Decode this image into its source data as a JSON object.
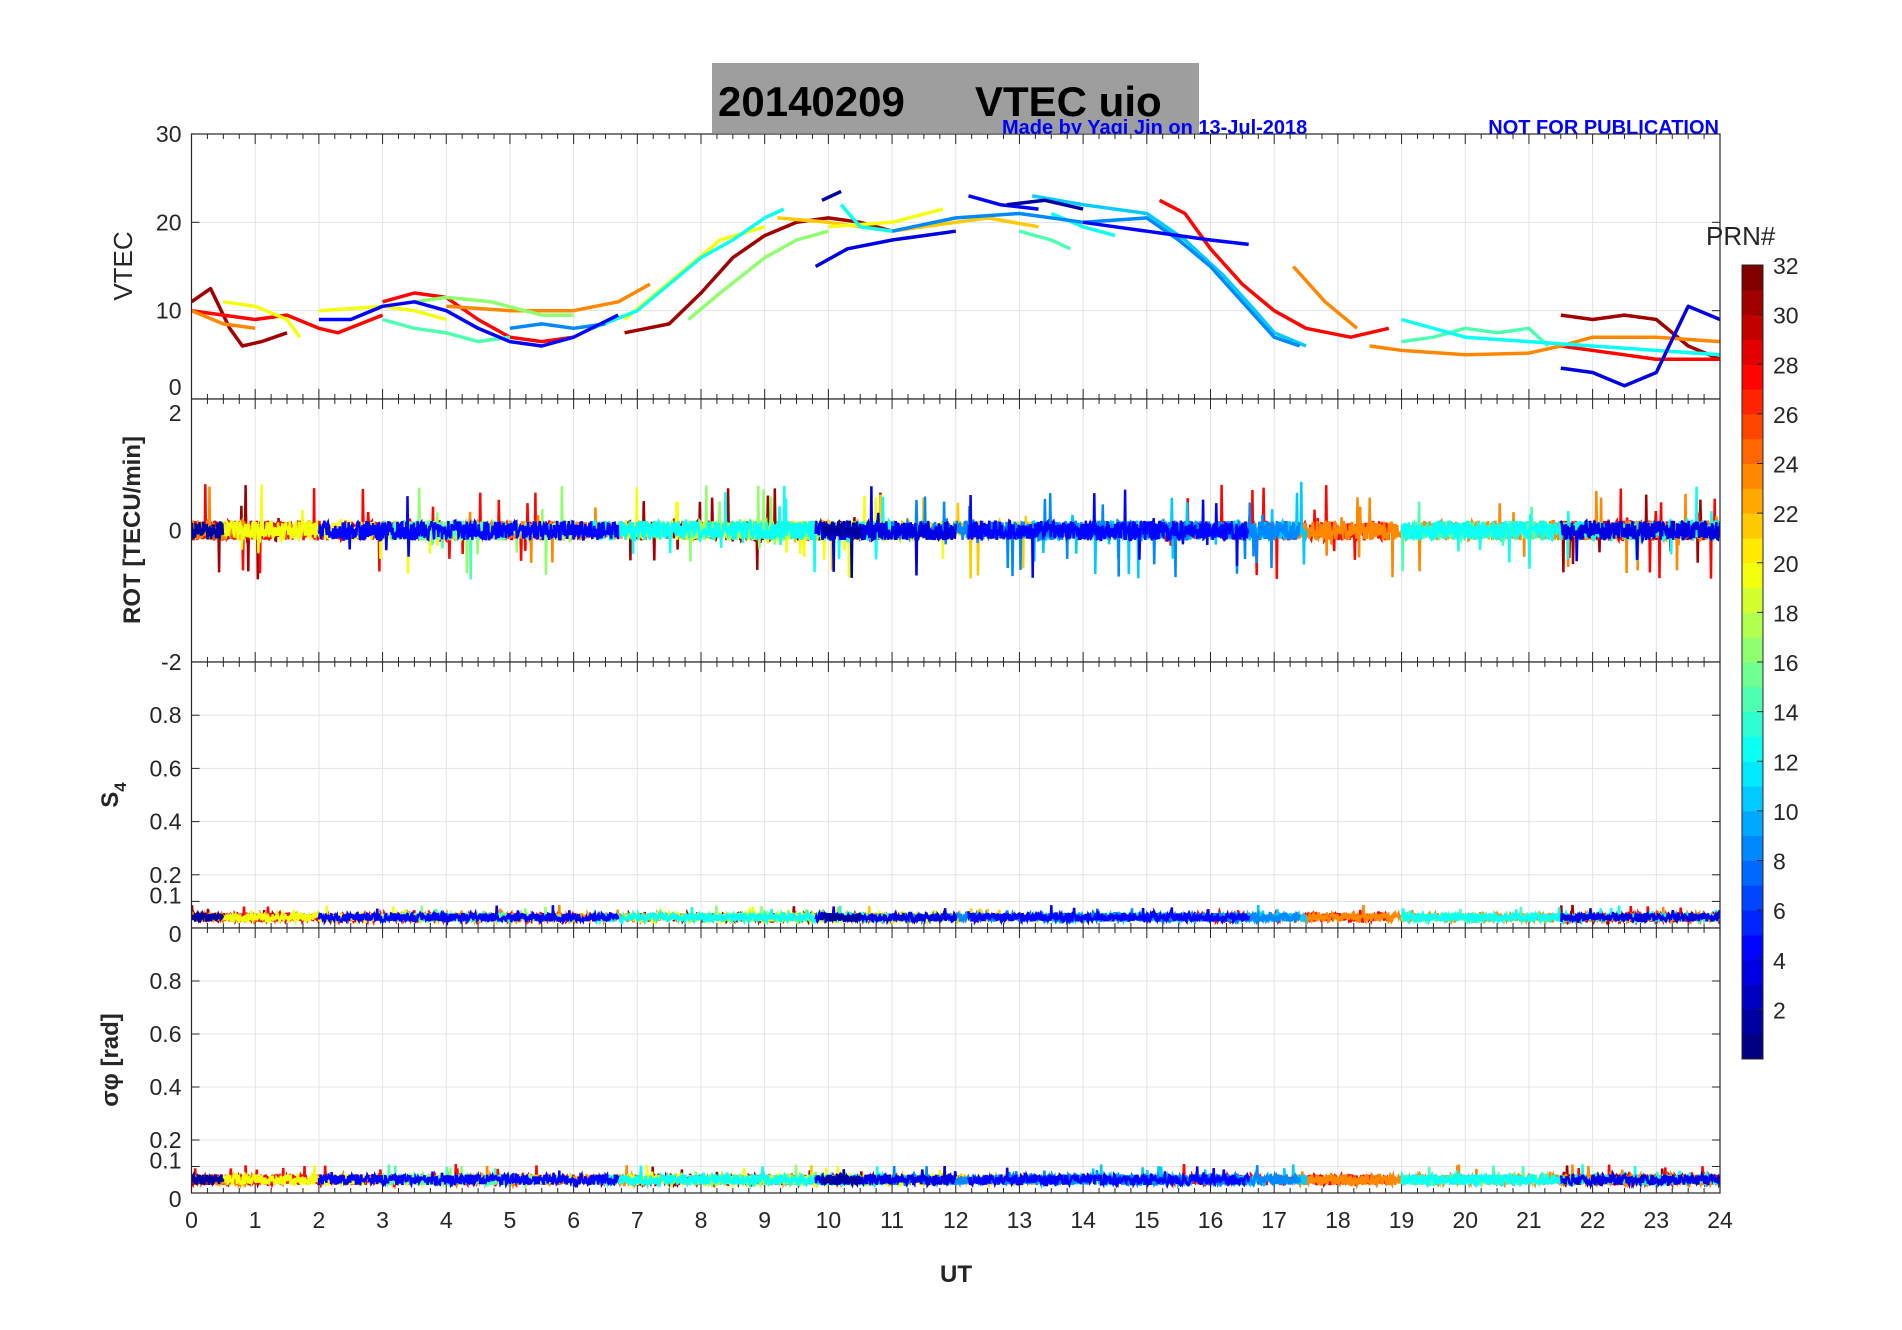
{
  "title": {
    "date": "20140209",
    "name": "VTEC  uio",
    "credit": "Made by Yaqi Jin on 13-Jul-2018",
    "notice": "NOT FOR PUBLICATION"
  },
  "colorbar": {
    "label": "PRN#",
    "ticks": [
      "2",
      "4",
      "6",
      "8",
      "10",
      "12",
      "14",
      "16",
      "18",
      "20",
      "22",
      "24",
      "26",
      "28",
      "30",
      "32"
    ],
    "range": [
      1,
      32
    ],
    "colormap": "jet"
  },
  "chart_data": [
    {
      "type": "line",
      "panel": "vtec",
      "ylabel": "VTEC",
      "ylim": [
        0,
        30
      ],
      "yticks": [
        "0",
        "10",
        "20",
        "30"
      ],
      "series": [
        {
          "prn": 31,
          "points": [
            [
              0,
              11
            ],
            [
              0.3,
              12.5
            ],
            [
              0.6,
              8
            ],
            [
              0.8,
              6
            ],
            [
              1.1,
              6.5
            ],
            [
              1.5,
              7.5
            ]
          ]
        },
        {
          "prn": 31,
          "points": [
            [
              6.8,
              7.5
            ],
            [
              7.5,
              8.5
            ],
            [
              8,
              12
            ],
            [
              8.5,
              16
            ],
            [
              9,
              18.5
            ],
            [
              9.5,
              20
            ],
            [
              10,
              20.5
            ],
            [
              10.5,
              20
            ],
            [
              11,
              19
            ]
          ]
        },
        {
          "prn": 31,
          "points": [
            [
              21.5,
              9.5
            ],
            [
              22,
              9
            ],
            [
              22.5,
              9.5
            ],
            [
              23,
              9
            ],
            [
              23.5,
              6
            ],
            [
              24,
              4.5
            ]
          ]
        },
        {
          "prn": 28,
          "points": [
            [
              0,
              10
            ],
            [
              0.5,
              9.5
            ],
            [
              1,
              9
            ],
            [
              1.5,
              9.5
            ],
            [
              2,
              8
            ],
            [
              2.3,
              7.5
            ],
            [
              3,
              9.5
            ]
          ]
        },
        {
          "prn": 28,
          "points": [
            [
              3,
              11
            ],
            [
              3.5,
              12
            ],
            [
              4,
              11.5
            ],
            [
              4.5,
              9
            ],
            [
              5,
              7
            ],
            [
              5.5,
              6.5
            ],
            [
              6,
              7
            ]
          ]
        },
        {
          "prn": 28,
          "points": [
            [
              15.2,
              22.5
            ],
            [
              15.6,
              21
            ],
            [
              16,
              17
            ],
            [
              16.5,
              13
            ],
            [
              17,
              10
            ],
            [
              17.5,
              8
            ],
            [
              18.2,
              7
            ],
            [
              18.8,
              8
            ]
          ]
        },
        {
          "prn": 28,
          "points": [
            [
              21.5,
              6
            ],
            [
              22.5,
              5
            ],
            [
              23,
              4.5
            ],
            [
              24,
              4.5
            ]
          ]
        },
        {
          "prn": 24,
          "points": [
            [
              0,
              10
            ],
            [
              0.5,
              8.5
            ],
            [
              1,
              8
            ]
          ]
        },
        {
          "prn": 24,
          "points": [
            [
              4,
              10.5
            ],
            [
              5,
              10
            ],
            [
              6,
              10
            ],
            [
              6.7,
              11
            ],
            [
              7.2,
              13
            ]
          ]
        },
        {
          "prn": 24,
          "points": [
            [
              17.3,
              15
            ],
            [
              17.8,
              11
            ],
            [
              18.3,
              8
            ]
          ]
        },
        {
          "prn": 24,
          "points": [
            [
              18.5,
              6
            ],
            [
              19,
              5.5
            ],
            [
              20,
              5
            ],
            [
              21,
              5.2
            ],
            [
              21.5,
              6
            ],
            [
              22,
              7
            ],
            [
              23,
              7
            ],
            [
              24,
              6.5
            ]
          ]
        },
        {
          "prn": 22,
          "points": [
            [
              9.2,
              20.5
            ],
            [
              10,
              20
            ],
            [
              11,
              19
            ],
            [
              12,
              20
            ],
            [
              12.5,
              20.5
            ],
            [
              13.3,
              19.5
            ]
          ]
        },
        {
          "prn": 20,
          "points": [
            [
              0.5,
              11
            ],
            [
              1,
              10.5
            ],
            [
              1.5,
              9
            ],
            [
              1.7,
              7
            ]
          ]
        },
        {
          "prn": 20,
          "points": [
            [
              2,
              10
            ],
            [
              3,
              10.5
            ],
            [
              3.5,
              10
            ],
            [
              4,
              9
            ]
          ]
        },
        {
          "prn": 20,
          "points": [
            [
              6.8,
              9
            ],
            [
              7.3,
              12
            ],
            [
              7.8,
              15
            ],
            [
              8.3,
              18
            ],
            [
              9,
              19.5
            ]
          ]
        },
        {
          "prn": 20,
          "points": [
            [
              10,
              19.5
            ],
            [
              11,
              20
            ],
            [
              11.8,
              21.5
            ]
          ]
        },
        {
          "prn": 17,
          "points": [
            [
              3.5,
              11
            ],
            [
              4,
              11.5
            ],
            [
              4.7,
              11
            ],
            [
              5.5,
              9.5
            ],
            [
              6,
              9.5
            ]
          ]
        },
        {
          "prn": 17,
          "points": [
            [
              7.8,
              9
            ],
            [
              8.3,
              12
            ],
            [
              9,
              16
            ],
            [
              9.5,
              18
            ],
            [
              10,
              19
            ]
          ]
        },
        {
          "prn": 15,
          "points": [
            [
              3,
              9
            ],
            [
              3.5,
              8
            ],
            [
              4,
              7.5
            ],
            [
              4.5,
              6.5
            ],
            [
              5,
              7
            ]
          ]
        },
        {
          "prn": 15,
          "points": [
            [
              13,
              19
            ],
            [
              13.5,
              18
            ],
            [
              13.8,
              17
            ]
          ]
        },
        {
          "prn": 15,
          "points": [
            [
              19,
              6.5
            ],
            [
              19.5,
              7
            ],
            [
              20,
              8
            ],
            [
              20.5,
              7.5
            ],
            [
              21,
              8
            ],
            [
              21.3,
              6
            ]
          ]
        },
        {
          "prn": 13,
          "points": [
            [
              6.3,
              8
            ],
            [
              7,
              10
            ],
            [
              7.5,
              13
            ],
            [
              8,
              16
            ],
            [
              8.5,
              18
            ],
            [
              9,
              20.5
            ],
            [
              9.3,
              21.5
            ]
          ]
        },
        {
          "prn": 13,
          "points": [
            [
              10.2,
              22
            ],
            [
              10.5,
              19.5
            ],
            [
              11,
              19
            ]
          ]
        },
        {
          "prn": 13,
          "points": [
            [
              13.5,
              21
            ],
            [
              14,
              19.5
            ],
            [
              14.5,
              18.5
            ]
          ]
        },
        {
          "prn": 13,
          "points": [
            [
              19,
              9
            ],
            [
              19.5,
              8
            ],
            [
              20,
              7
            ],
            [
              21,
              6.5
            ],
            [
              22,
              6
            ],
            [
              23,
              5.5
            ],
            [
              24,
              5
            ]
          ]
        },
        {
          "prn": 11,
          "points": [
            [
              13.2,
              23
            ],
            [
              14,
              22
            ],
            [
              15,
              21
            ],
            [
              15.6,
              18
            ],
            [
              16.2,
              14
            ],
            [
              16.7,
              10
            ],
            [
              17,
              7.5
            ],
            [
              17.5,
              6
            ]
          ]
        },
        {
          "prn": 9,
          "points": [
            [
              11,
              19
            ],
            [
              12,
              20.5
            ],
            [
              13,
              21
            ],
            [
              14,
              20
            ],
            [
              15,
              20.5
            ],
            [
              15.5,
              18
            ],
            [
              16,
              15
            ],
            [
              16.5,
              11
            ],
            [
              17,
              7
            ],
            [
              17.4,
              6
            ]
          ]
        },
        {
          "prn": 9,
          "points": [
            [
              5,
              8
            ],
            [
              5.5,
              8.5
            ],
            [
              6,
              8
            ],
            [
              6.5,
              8.5
            ]
          ]
        },
        {
          "prn": 5,
          "points": [
            [
              2,
              9
            ],
            [
              2.5,
              9
            ],
            [
              3,
              10.5
            ],
            [
              3.5,
              11
            ],
            [
              4,
              10
            ],
            [
              4.5,
              8
            ],
            [
              5,
              6.5
            ],
            [
              5.5,
              6
            ],
            [
              6,
              7
            ],
            [
              6.7,
              9.5
            ]
          ]
        },
        {
          "prn": 5,
          "points": [
            [
              14,
              20
            ],
            [
              14.5,
              19.5
            ],
            [
              15,
              19
            ],
            [
              15.5,
              18.5
            ],
            [
              16,
              18
            ],
            [
              16.6,
              17.5
            ]
          ]
        },
        {
          "prn": 5,
          "points": [
            [
              12.2,
              23
            ],
            [
              12.7,
              22
            ],
            [
              13.3,
              21.5
            ]
          ]
        },
        {
          "prn": 4,
          "points": [
            [
              9.8,
              15
            ],
            [
              10.3,
              17
            ],
            [
              11,
              18
            ],
            [
              11.5,
              18.5
            ],
            [
              12,
              19
            ]
          ]
        },
        {
          "prn": 4,
          "points": [
            [
              21.5,
              3.5
            ],
            [
              22,
              3
            ],
            [
              22.5,
              1.5
            ],
            [
              23,
              3
            ],
            [
              23.5,
              10.5
            ],
            [
              24,
              9
            ]
          ]
        },
        {
          "prn": 2,
          "points": [
            [
              9.9,
              22.5
            ],
            [
              10.2,
              23.5
            ]
          ]
        },
        {
          "prn": 2,
          "points": [
            [
              12.8,
              22
            ],
            [
              13.4,
              22.5
            ],
            [
              14,
              21.5
            ]
          ]
        }
      ]
    },
    {
      "type": "line",
      "panel": "rot",
      "ylabel": "ROT [TECU/min]",
      "ylim": [
        -2,
        2
      ],
      "yticks": [
        "-2",
        "0",
        "2"
      ],
      "typical_abs_value": 0.15,
      "max_abs_value": 1.3
    },
    {
      "type": "line",
      "panel": "s4",
      "ylabel": "S4",
      "ylim": [
        0,
        1
      ],
      "yticks": [
        "0",
        "0.1",
        "0.2",
        "0.4",
        "0.6",
        "0.8"
      ],
      "typical_value": 0.04,
      "max_value": 0.1
    },
    {
      "type": "line",
      "panel": "sigma_phi",
      "ylabel": "σφ [rad]",
      "ylim": [
        0,
        1
      ],
      "yticks": [
        "0",
        "0.1",
        "0.2",
        "0.4",
        "0.6",
        "0.8"
      ],
      "typical_value": 0.05,
      "max_value": 0.12
    }
  ],
  "xaxis": {
    "label": "UT",
    "xlim": [
      0,
      24
    ],
    "ticks": [
      "0",
      "1",
      "2",
      "3",
      "4",
      "5",
      "6",
      "7",
      "8",
      "9",
      "10",
      "11",
      "12",
      "13",
      "14",
      "15",
      "16",
      "17",
      "18",
      "19",
      "20",
      "21",
      "22",
      "23",
      "24"
    ]
  },
  "arcs": [
    {
      "prn": 31,
      "start": 0,
      "end": 1.5
    },
    {
      "prn": 31,
      "start": 6.8,
      "end": 11
    },
    {
      "prn": 31,
      "start": 21.5,
      "end": 24
    },
    {
      "prn": 28,
      "start": 0,
      "end": 6
    },
    {
      "prn": 28,
      "start": 15.2,
      "end": 18.8
    },
    {
      "prn": 28,
      "start": 21.5,
      "end": 24
    },
    {
      "prn": 24,
      "start": 0,
      "end": 1
    },
    {
      "prn": 24,
      "start": 4,
      "end": 7.2
    },
    {
      "prn": 24,
      "start": 17.3,
      "end": 24
    },
    {
      "prn": 22,
      "start": 9.2,
      "end": 13.3
    },
    {
      "prn": 20,
      "start": 0.5,
      "end": 4
    },
    {
      "prn": 20,
      "start": 6.8,
      "end": 11.8
    },
    {
      "prn": 17,
      "start": 3.5,
      "end": 6
    },
    {
      "prn": 17,
      "start": 7.8,
      "end": 10
    },
    {
      "prn": 15,
      "start": 3,
      "end": 5
    },
    {
      "prn": 15,
      "start": 19,
      "end": 21.3
    },
    {
      "prn": 13,
      "start": 6.3,
      "end": 11
    },
    {
      "prn": 13,
      "start": 19,
      "end": 24
    },
    {
      "prn": 11,
      "start": 13.2,
      "end": 17.5
    },
    {
      "prn": 9,
      "start": 11,
      "end": 17.4
    },
    {
      "prn": 5,
      "start": 2,
      "end": 6.7
    },
    {
      "prn": 5,
      "start": 12.2,
      "end": 16.6
    },
    {
      "prn": 4,
      "start": 9.8,
      "end": 12
    },
    {
      "prn": 4,
      "start": 21.5,
      "end": 24
    },
    {
      "prn": 2,
      "start": 0,
      "end": 0.5
    },
    {
      "prn": 2,
      "start": 9.9,
      "end": 10.5
    }
  ]
}
